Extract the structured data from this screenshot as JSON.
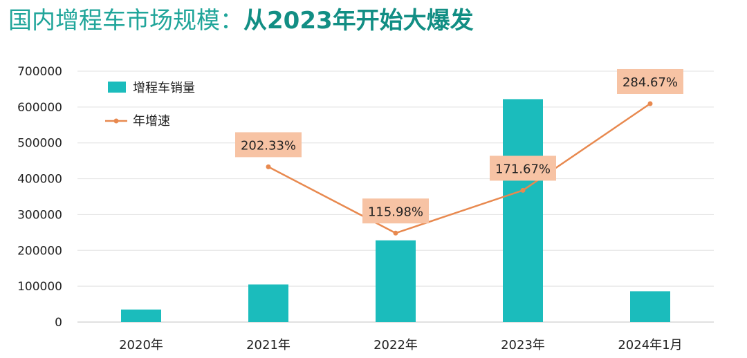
{
  "title": {
    "main": "国内增程车市场规模：",
    "highlight": "从2023年开始大爆发"
  },
  "colors": {
    "bar": "#1bbcbc",
    "line": "#e8894f",
    "label_bg": "#f7c3a4",
    "title": "#20a59a",
    "grid": "#e6e6e6"
  },
  "chart_data": {
    "type": "bar",
    "categories": [
      "2020年",
      "2021年",
      "2022年",
      "2023年",
      "2024年1月"
    ],
    "series": [
      {
        "name": "增程车销量",
        "type": "bar",
        "axis": "left",
        "values": [
          35000,
          105000,
          228000,
          622000,
          86000
        ]
      },
      {
        "name": "年增速",
        "type": "line",
        "axis": "right",
        "values": [
          null,
          202.33,
          115.98,
          171.67,
          284.67
        ],
        "labels": [
          "",
          "202.33%",
          "115.98%",
          "171.67%",
          "284.67%"
        ]
      }
    ],
    "yticks": [
      "0",
      "100000",
      "200000",
      "300000",
      "400000",
      "500000",
      "600000",
      "700000"
    ],
    "ylim": [
      0,
      700000
    ],
    "y2lim": [
      0,
      327
    ],
    "grid": true,
    "legend_position": "top-left"
  }
}
